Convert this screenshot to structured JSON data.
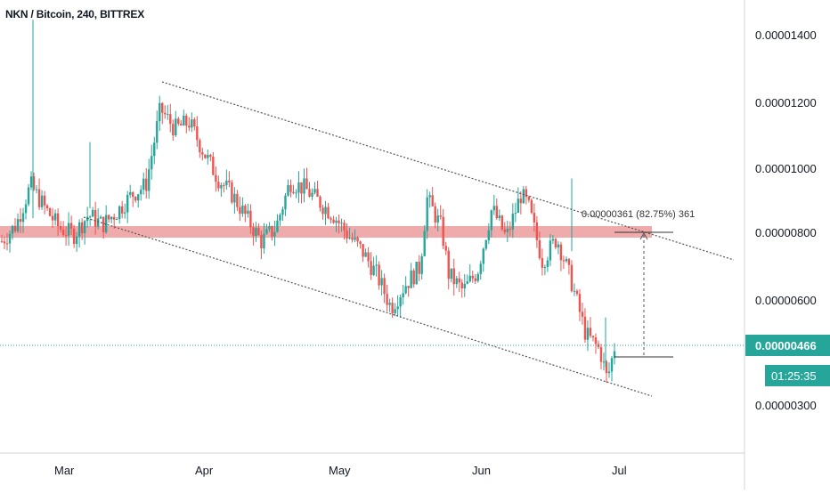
{
  "header": {
    "symbol": "NKN / Bitcoin",
    "interval": "240",
    "exchange": "BITTREX"
  },
  "colors": {
    "up": "#26a69a",
    "down": "#ef5350",
    "resistance_zone": "#e57373",
    "last_price_line": "#26a69a",
    "price_label_bg": "#26a69a",
    "trendline": "#555555"
  },
  "chart_data": {
    "type": "candlestick",
    "x_tick_labels": [
      "Mar",
      "Apr",
      "May",
      "Jun",
      "Jul"
    ],
    "y_tick_labels": [
      "0.00001400",
      "0.00001200",
      "0.00001000",
      "0.00000800",
      "0.00000600",
      "0.00000300"
    ],
    "y_ticks": [
      1.4e-05,
      1.2e-05,
      1e-05,
      8e-06,
      6e-06,
      3e-06
    ],
    "last_price": "0.00000466",
    "countdown": "01:25:35",
    "measure_label": "0.00000361 (82.75%) 361",
    "resistance_zone": [
      7.8e-06,
      8e-06
    ],
    "price_path": [
      {
        "t": 0.0,
        "p": 7.8e-06
      },
      {
        "t": 0.02,
        "p": 8.3e-06
      },
      {
        "t": 0.04,
        "p": 9.5e-06
      },
      {
        "t": 0.06,
        "p": 8.8e-06
      },
      {
        "t": 0.08,
        "p": 8.2e-06
      },
      {
        "t": 0.1,
        "p": 8e-06
      },
      {
        "t": 0.12,
        "p": 8.6e-06
      },
      {
        "t": 0.14,
        "p": 8.3e-06
      },
      {
        "t": 0.16,
        "p": 8.7e-06
      },
      {
        "t": 0.18,
        "p": 9.2e-06
      },
      {
        "t": 0.2,
        "p": 9.5e-06
      },
      {
        "t": 0.22,
        "p": 1.18e-05
      },
      {
        "t": 0.24,
        "p": 1.12e-05
      },
      {
        "t": 0.26,
        "p": 1.14e-05
      },
      {
        "t": 0.28,
        "p": 1.05e-05
      },
      {
        "t": 0.3,
        "p": 9.7e-06
      },
      {
        "t": 0.32,
        "p": 9.2e-06
      },
      {
        "t": 0.34,
        "p": 8.5e-06
      },
      {
        "t": 0.36,
        "p": 7.8e-06
      },
      {
        "t": 0.38,
        "p": 8.2e-06
      },
      {
        "t": 0.4,
        "p": 9.6e-06
      },
      {
        "t": 0.42,
        "p": 9.4e-06
      },
      {
        "t": 0.44,
        "p": 9e-06
      },
      {
        "t": 0.46,
        "p": 8.6e-06
      },
      {
        "t": 0.48,
        "p": 8e-06
      },
      {
        "t": 0.5,
        "p": 7.5e-06
      },
      {
        "t": 0.52,
        "p": 6.8e-06
      },
      {
        "t": 0.54,
        "p": 5.8e-06
      },
      {
        "t": 0.56,
        "p": 6.5e-06
      },
      {
        "t": 0.58,
        "p": 7e-06
      },
      {
        "t": 0.59,
        "p": 9.1e-06
      },
      {
        "t": 0.61,
        "p": 8.2e-06
      },
      {
        "t": 0.62,
        "p": 6.8e-06
      },
      {
        "t": 0.64,
        "p": 6.3e-06
      },
      {
        "t": 0.66,
        "p": 6.9e-06
      },
      {
        "t": 0.68,
        "p": 8.8e-06
      },
      {
        "t": 0.7,
        "p": 7.9e-06
      },
      {
        "t": 0.72,
        "p": 9.2e-06
      },
      {
        "t": 0.73,
        "p": 8.9e-06
      },
      {
        "t": 0.75,
        "p": 7.2e-06
      },
      {
        "t": 0.77,
        "p": 7.9e-06
      },
      {
        "t": 0.79,
        "p": 6.6e-06
      },
      {
        "t": 0.81,
        "p": 5e-06
      },
      {
        "t": 0.83,
        "p": 4.5e-06
      },
      {
        "t": 0.84,
        "p": 3.6e-06
      },
      {
        "t": 0.85,
        "p": 4.6e-06
      }
    ]
  }
}
